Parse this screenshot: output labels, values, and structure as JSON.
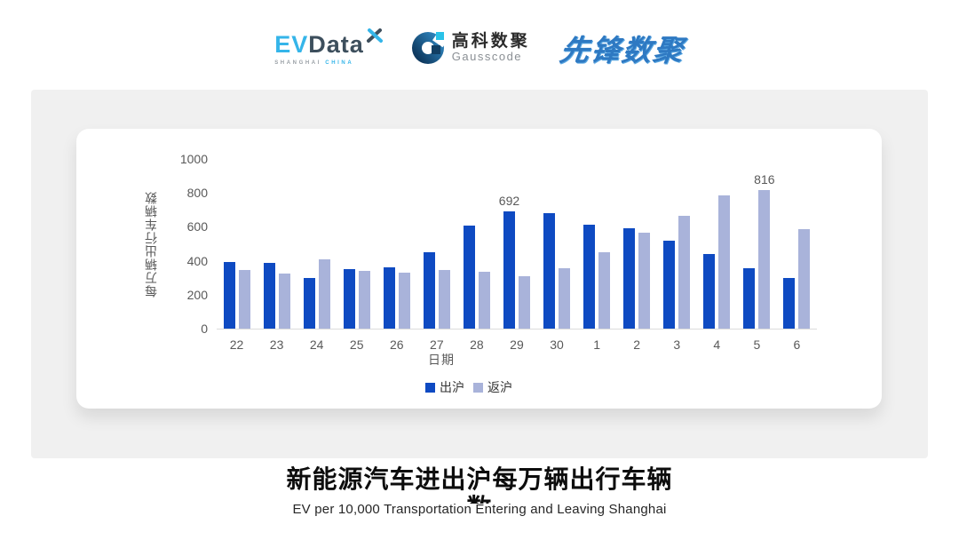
{
  "header": {
    "evdata_logo": {
      "ev": "EV",
      "data": "Data",
      "sub_left": "SHANGHAI",
      "sub_right": "CHINA"
    },
    "gausscode_logo": {
      "cn": "高科数聚",
      "en": "Gausscode"
    },
    "pioneer_logo": {
      "text": "先锋数聚"
    }
  },
  "chart_data": {
    "type": "bar",
    "title": "",
    "xlabel": "日期",
    "ylabel": "每万辆出行车辆数",
    "ylim": [
      0,
      1000
    ],
    "yticks": [
      0,
      200,
      400,
      600,
      800,
      1000
    ],
    "grid": false,
    "legend_position": "bottom",
    "categories": [
      "22",
      "23",
      "24",
      "25",
      "26",
      "27",
      "28",
      "29",
      "30",
      "1",
      "2",
      "3",
      "4",
      "5",
      "6"
    ],
    "series": [
      {
        "name": "出沪",
        "color": "#0e4ac2",
        "values": [
          392,
          386,
          297,
          349,
          360,
          448,
          608,
          692,
          680,
          612,
          590,
          518,
          441,
          358,
          299
        ],
        "point_labels": {
          "7": "692"
        }
      },
      {
        "name": "返沪",
        "color": "#a9b3da",
        "values": [
          345,
          324,
          406,
          343,
          330,
          345,
          337,
          310,
          355,
          452,
          568,
          663,
          787,
          816,
          585
        ],
        "point_labels": {
          "13": "816"
        }
      }
    ]
  },
  "footer": {
    "title": "新能源汽车进出沪每万辆出行车辆",
    "title_wrapped": "数",
    "subtitle": "EV per 10,000 Transportation Entering and Leaving Shanghai"
  },
  "colors": {
    "bar_primary": "#0e4ac2",
    "bar_secondary": "#a9b3da",
    "axis_text": "#595959",
    "panel_gray": "#f0f0f0",
    "card_white": "#ffffff"
  }
}
